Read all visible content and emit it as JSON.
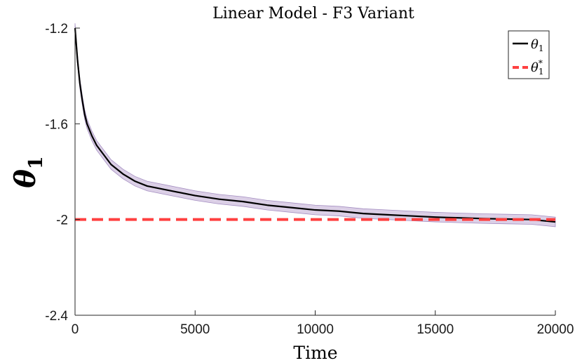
{
  "chart_data": {
    "type": "line",
    "title": "Linear Model - F3 Variant",
    "xlabel": "Time",
    "ylabel": {
      "symbol": "θ",
      "subscript": "1"
    },
    "xlim": [
      0,
      20000
    ],
    "ylim": [
      -2.4,
      -1.2
    ],
    "xticks": [
      0,
      5000,
      10000,
      15000,
      20000
    ],
    "xtick_labels": [
      "0",
      "5000",
      "10000",
      "15000",
      "20000"
    ],
    "yticks": [
      -1.2,
      -1.6,
      -2,
      -2.4
    ],
    "ytick_labels": [
      "-1.2",
      "-1.6",
      "-2",
      "-2.4"
    ],
    "series": [
      {
        "name": "θ1",
        "legend_symbol": "θ",
        "legend_sub": "1",
        "legend_sup": "",
        "style": "solid",
        "color": "#000000",
        "x": [
          0,
          100,
          200,
          300,
          400,
          500,
          700,
          900,
          1200,
          1500,
          2000,
          2500,
          3000,
          4000,
          5000,
          6000,
          7000,
          8000,
          9000,
          10000,
          11000,
          12000,
          13000,
          14000,
          15000,
          16000,
          17000,
          18000,
          19000,
          20000
        ],
        "y": [
          -1.2,
          -1.33,
          -1.43,
          -1.5,
          -1.56,
          -1.6,
          -1.65,
          -1.69,
          -1.73,
          -1.77,
          -1.81,
          -1.84,
          -1.86,
          -1.88,
          -1.9,
          -1.915,
          -1.925,
          -1.94,
          -1.95,
          -1.96,
          -1.965,
          -1.975,
          -1.98,
          -1.985,
          -1.99,
          -1.993,
          -1.996,
          -1.998,
          -2.0,
          -2.01
        ],
        "band_halfwidth": 0.02,
        "band_color": "#c7b6d9"
      },
      {
        "name": "θ1*",
        "legend_symbol": "θ",
        "legend_sub": "1",
        "legend_sup": "*",
        "style": "dashed",
        "color": "#ff4040",
        "x": [
          0,
          20000
        ],
        "y": [
          -2,
          -2
        ]
      }
    ],
    "legend_position": "top-right"
  }
}
